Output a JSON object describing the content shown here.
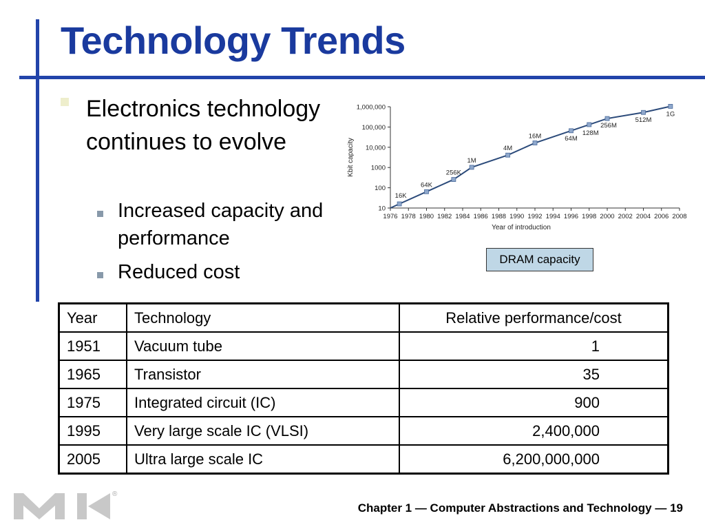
{
  "title": "Technology Trends",
  "bullets": {
    "main": "Electronics technology continues to evolve",
    "sub": [
      "Increased capacity and performance",
      "Reduced cost"
    ]
  },
  "legend_label": "DRAM capacity",
  "table": {
    "headers": [
      "Year",
      "Technology",
      "Relative performance/cost"
    ],
    "rows": [
      [
        "1951",
        "Vacuum tube",
        "1"
      ],
      [
        "1965",
        "Transistor",
        "35"
      ],
      [
        "1975",
        "Integrated circuit (IC)",
        "900"
      ],
      [
        "1995",
        "Very large scale IC (VLSI)",
        "2,400,000"
      ],
      [
        "2005",
        "Ultra large scale IC",
        "6,200,000,000"
      ]
    ]
  },
  "footer": "Chapter 1 — Computer Abstractions and Technology — 19",
  "colors": {
    "title": "#1a3a9e",
    "accent_bar": "#2244aa",
    "series": "#2b4a7a",
    "marker": "#8fa8cc",
    "legend_bg": "#bfd7e6"
  },
  "chart_data": {
    "type": "line",
    "xlabel": "Year of introduction",
    "ylabel": "Kbit capacity",
    "yscale": "log",
    "xlim": [
      1976,
      2008
    ],
    "ylim": [
      10,
      1000000
    ],
    "xticks": [
      1976,
      1978,
      1980,
      1982,
      1984,
      1986,
      1988,
      1990,
      1992,
      1994,
      1996,
      1998,
      2000,
      2002,
      2004,
      2006,
      2008
    ],
    "yticks": [
      10,
      100,
      1000,
      10000,
      100000,
      1000000
    ],
    "ytick_labels": [
      "10",
      "100",
      "1000",
      "10,000",
      "100,000",
      "1,000,000"
    ],
    "points": [
      {
        "x": 1977,
        "y": 16,
        "label": "16K"
      },
      {
        "x": 1980,
        "y": 64,
        "label": "64K"
      },
      {
        "x": 1983,
        "y": 256,
        "label": "256K"
      },
      {
        "x": 1985,
        "y": 1024,
        "label": "1M"
      },
      {
        "x": 1989,
        "y": 4096,
        "label": "4M"
      },
      {
        "x": 1992,
        "y": 16384,
        "label": "16M"
      },
      {
        "x": 1996,
        "y": 65536,
        "label": "64M"
      },
      {
        "x": 1998,
        "y": 131072,
        "label": "128M"
      },
      {
        "x": 2000,
        "y": 262144,
        "label": "256M"
      },
      {
        "x": 2004,
        "y": 524288,
        "label": "512M"
      },
      {
        "x": 2007,
        "y": 1048576,
        "label": "1G"
      }
    ]
  }
}
